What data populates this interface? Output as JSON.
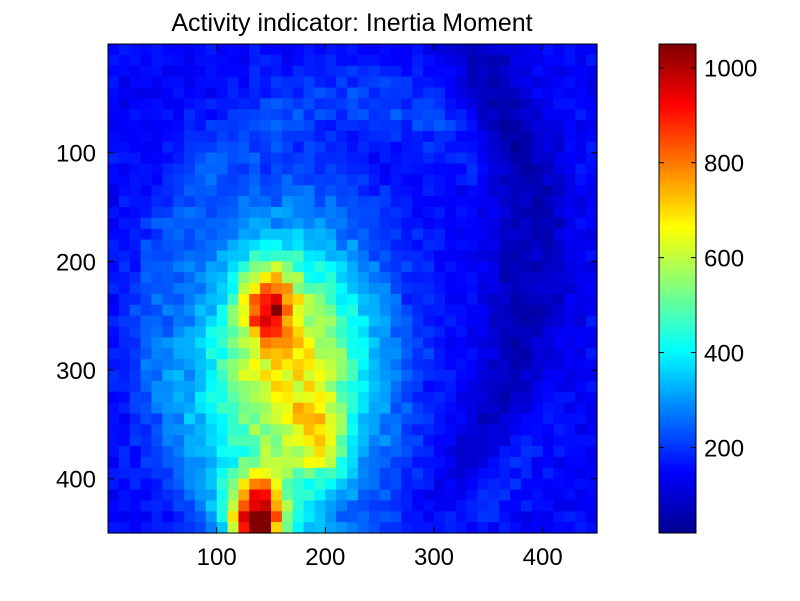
{
  "chart_data": {
    "type": "heatmap",
    "title": "Activity indicator: Inertia Moment",
    "xlabel": "",
    "ylabel": "",
    "colormap": "jet",
    "xlim": [
      0,
      450
    ],
    "ylim": [
      450,
      0
    ],
    "x_ticks": [
      100,
      200,
      300,
      400
    ],
    "y_ticks": [
      100,
      200,
      300,
      400
    ],
    "color_range": [
      20,
      1050
    ],
    "colorbar_ticks": [
      200,
      400,
      600,
      800,
      1000
    ],
    "grid_resolution": [
      45,
      45
    ],
    "background_level": 150,
    "features": [
      {
        "kind": "main-blob",
        "center": [
          165,
          300
        ],
        "peak": 530
      },
      {
        "kind": "hot-spot",
        "center": [
          148,
          238
        ],
        "peak": 450
      },
      {
        "kind": "hot-spot",
        "center": [
          138,
          435
        ],
        "peak": 760
      },
      {
        "kind": "hot-spot",
        "center": [
          195,
          365
        ],
        "peak": 230
      },
      {
        "kind": "cool-band",
        "center": [
          380,
          210
        ],
        "peak": -130
      }
    ]
  }
}
